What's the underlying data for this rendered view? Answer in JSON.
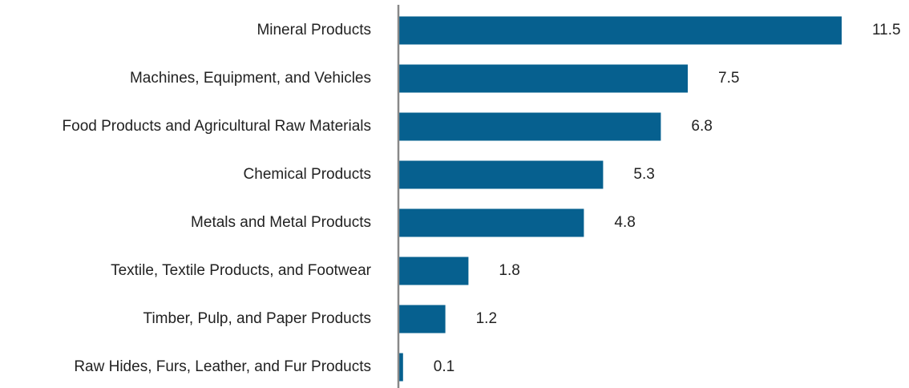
{
  "chart_data": {
    "type": "bar",
    "orientation": "horizontal",
    "categories": [
      "Mineral Products",
      "Machines, Equipment, and Vehicles",
      "Food Products and Agricultural Raw Materials",
      "Chemical Products",
      "Metals and Metal Products",
      "Textile, Textile Products, and Footwear",
      "Timber, Pulp, and Paper Products",
      "Raw Hides, Furs, Leather, and Fur Products"
    ],
    "values": [
      11.5,
      7.5,
      6.8,
      5.3,
      4.8,
      1.8,
      1.2,
      0.1
    ],
    "value_labels": [
      "11.5",
      "7.5",
      "6.8",
      "5.3",
      "4.8",
      "1.8",
      "1.2",
      "0.1"
    ],
    "xlim": [
      0,
      11.5
    ],
    "grid": false,
    "legend": "none",
    "bar_color": "#06608f",
    "axis_color": "#888888"
  }
}
